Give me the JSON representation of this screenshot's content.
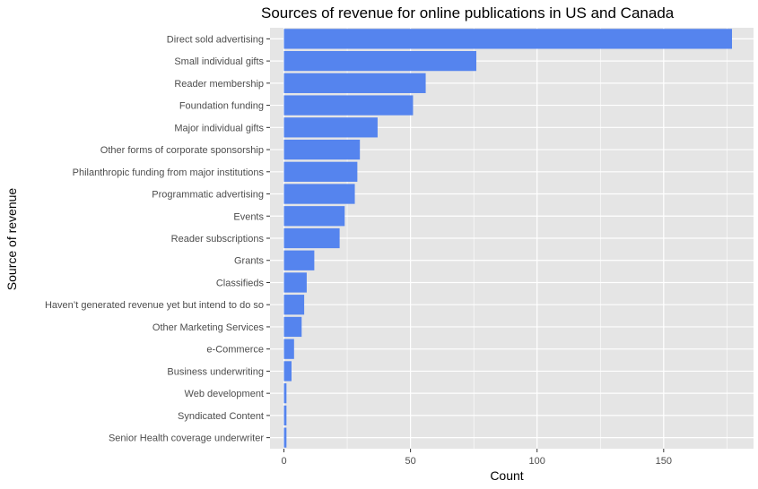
{
  "chart_data": {
    "type": "bar",
    "orientation": "horizontal",
    "title": "Sources of revenue for online publications in US and Canada",
    "xlabel": "Count",
    "ylabel": "Source of revenue",
    "categories": [
      "Direct sold advertising",
      "Small individual gifts",
      "Reader membership",
      "Foundation funding",
      "Major individual gifts",
      "Other forms of corporate sponsorship",
      "Philanthropic funding from major institutions",
      "Programmatic advertising",
      "Events",
      "Reader subscriptions",
      "Grants",
      "Classifieds",
      "Haven’t generated revenue yet but intend to do so",
      "Other Marketing Services",
      "e-Commerce",
      "Business underwriting",
      "Web development",
      "Syndicated Content",
      "Senior Health coverage underwriter"
    ],
    "values": [
      177,
      76,
      56,
      51,
      37,
      30,
      29,
      28,
      24,
      22,
      12,
      9,
      8,
      7,
      4,
      3,
      1,
      1,
      1
    ],
    "xlim": [
      -5.5,
      185.5
    ],
    "xticks": [
      0,
      50,
      100,
      150
    ],
    "bar_color": "#5584EE",
    "panel_color": "#E5E5E5",
    "grid_color": "#FFFFFF",
    "grid": true,
    "legend": "none"
  }
}
